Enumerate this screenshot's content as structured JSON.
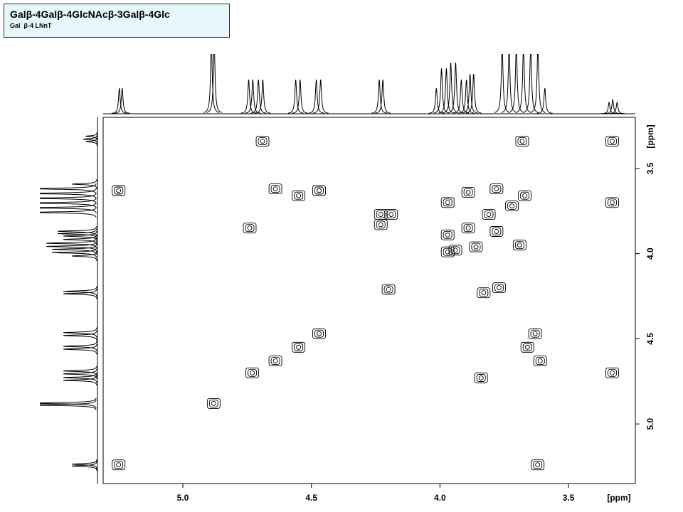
{
  "chart_data": {
    "type": "nmr2d",
    "title": "Galβ-4Galβ-4GlcNAcβ-3Galβ-4Glc",
    "subtitle": "Gal  β-4 LNnT",
    "x_label": "[ppm]",
    "y_label": "[ppm]",
    "xlim": [
      5.31,
      3.24
    ],
    "ylim": [
      3.2,
      5.35
    ],
    "xticks": [
      {
        "value": 5.0,
        "label": "5.0"
      },
      4.5,
      {
        "value": 4.0,
        "label": "4.0"
      },
      3.5
    ],
    "yticks": [
      3.5,
      {
        "value": 4.0,
        "label": "4.0"
      },
      4.5,
      {
        "value": 5.0,
        "label": "5.0"
      }
    ],
    "color": "#000000",
    "projection": {
      "ppm": [
        5.247,
        5.236,
        4.889,
        4.878,
        4.744,
        4.728,
        4.706,
        4.689,
        4.561,
        4.544,
        4.481,
        4.464,
        4.236,
        4.222,
        4.014,
        3.994,
        3.975,
        3.958,
        3.939,
        3.917,
        3.897,
        3.883,
        3.869,
        3.758,
        3.731,
        3.703,
        3.675,
        3.647,
        3.619,
        3.592,
        3.342,
        3.328,
        3.311
      ],
      "intensity": [
        0.45,
        0.45,
        1.2,
        1.2,
        0.6,
        0.6,
        0.6,
        0.6,
        0.6,
        0.6,
        0.6,
        0.6,
        0.6,
        0.6,
        0.45,
        0.8,
        0.8,
        0.9,
        0.9,
        0.6,
        0.6,
        0.7,
        0.7,
        1.2,
        1.2,
        1.2,
        1.2,
        1.2,
        1.2,
        0.45,
        0.2,
        0.25,
        0.2
      ]
    },
    "peaks": {
      "x": [
        4.69,
        3.68,
        3.33,
        5.25,
        4.64,
        4.55,
        4.47,
        4.74,
        4.23,
        4.19,
        4.23,
        4.2,
        3.83,
        3.77,
        3.63,
        3.66,
        3.61,
        3.84,
        3.33,
        3.33,
        4.47,
        4.55,
        4.64,
        4.73,
        4.88,
        5.25,
        3.62,
        3.97,
        3.89,
        3.78,
        3.67,
        3.97,
        3.89,
        3.81,
        3.72,
        3.94,
        3.86,
        3.69,
        3.97,
        3.78
      ],
      "y": [
        3.34,
        3.34,
        3.34,
        3.63,
        3.62,
        3.66,
        3.63,
        3.85,
        3.77,
        3.77,
        3.83,
        4.21,
        4.23,
        4.2,
        4.47,
        4.55,
        4.63,
        4.73,
        3.7,
        4.7,
        4.47,
        4.55,
        4.63,
        4.7,
        4.88,
        5.24,
        5.24,
        3.7,
        3.64,
        3.62,
        3.66,
        3.89,
        3.85,
        3.77,
        3.72,
        3.98,
        3.96,
        3.95,
        3.99,
        3.87
      ]
    }
  }
}
